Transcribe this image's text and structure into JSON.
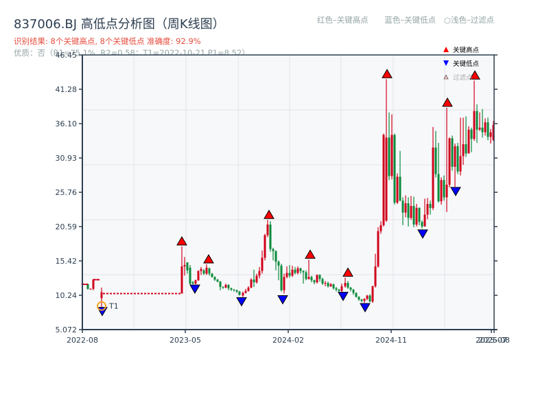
{
  "header": {
    "title": "837006.BJ 高低点分析图（周K线图）",
    "subtitle": "识别结果: 8个关键高点, 8个关键低点  准确度: 92.9%",
    "quality": "优质：否（R1=75.1%, R2=0.58；T1=2022-10-21 P1=8.52）",
    "legend_hint_red": "红色–关键高点",
    "legend_hint_blue": "蓝色–关键低点",
    "legend_hint_light": "○浅色–过滤点"
  },
  "colors": {
    "up": "#d0021b",
    "down": "#0a8a3a",
    "high_marker": "#ff0000",
    "low_marker": "#0000ff",
    "t1_ring": "#f5a623",
    "axis": "#2c3e50",
    "plot_bg": "#f7f8fa",
    "grid": "#e1e4e8"
  },
  "chart_data": {
    "type": "candlestick",
    "title": "837006.BJ 高低点分析图（周K线图）",
    "xlabel": "",
    "ylabel": "",
    "ylim": [
      5.072,
      46.45
    ],
    "y_ticks": [
      "46.45",
      "41.28",
      "36.10",
      "30.93",
      "25.76",
      "20.59",
      "15.42",
      "10.24",
      "5.072"
    ],
    "x_ticks": [
      "2022-08",
      "2023-05",
      "2024-02",
      "2024-11",
      "2025-07",
      "2025-08"
    ],
    "legend": [
      {
        "label": "关键高点",
        "marker": "triangle-up",
        "color": "#ff0000"
      },
      {
        "label": "关键低点",
        "marker": "triangle-down",
        "color": "#0000ff"
      },
      {
        "label": "过滤点",
        "marker": "triangle-up-light",
        "color": "#f4c2c2"
      }
    ],
    "annotations": [
      {
        "label": "T1",
        "date": "2022-10-21",
        "price": 8.52
      }
    ],
    "key_highs": [
      {
        "x": 265,
        "price": 17.6
      },
      {
        "x": 304,
        "price": 14.9
      },
      {
        "x": 392,
        "price": 21.6
      },
      {
        "x": 452,
        "price": 15.6
      },
      {
        "x": 507,
        "price": 12.9
      },
      {
        "x": 564,
        "price": 42.8
      },
      {
        "x": 652,
        "price": 38.5
      },
      {
        "x": 692,
        "price": 42.6
      }
    ],
    "key_lows": [
      {
        "x": 149,
        "price": 8.52
      },
      {
        "x": 284,
        "price": 11.9
      },
      {
        "x": 352,
        "price": 10.0
      },
      {
        "x": 412,
        "price": 10.3
      },
      {
        "x": 500,
        "price": 10.8
      },
      {
        "x": 532,
        "price": 9.1
      },
      {
        "x": 616,
        "price": 20.2
      },
      {
        "x": 664,
        "price": 26.6
      }
    ],
    "candles": [
      [
        120,
        11.9,
        12.0,
        12.0,
        11.8
      ],
      [
        124,
        11.9,
        11.9,
        12.0,
        11.8
      ],
      [
        128,
        11.9,
        11.2,
        12.0,
        11.1
      ],
      [
        132,
        11.2,
        11.2,
        11.3,
        11.1
      ],
      [
        136,
        11.2,
        12.6,
        12.7,
        11.0
      ],
      [
        140,
        12.6,
        12.6,
        12.7,
        12.5
      ],
      [
        144,
        12.6,
        12.6,
        12.7,
        12.5
      ],
      [
        148,
        9.8,
        10.7,
        11.4,
        8.5
      ],
      [
        152,
        10.5,
        10.5,
        10.6,
        10.4
      ],
      [
        160,
        10.5,
        10.5,
        10.6,
        10.4
      ],
      [
        170,
        10.5,
        10.5,
        10.6,
        10.4
      ],
      [
        180,
        10.5,
        10.5,
        10.6,
        10.4
      ],
      [
        190,
        10.5,
        10.5,
        10.6,
        10.4
      ],
      [
        200,
        10.5,
        10.5,
        10.6,
        10.4
      ],
      [
        210,
        10.5,
        10.5,
        10.6,
        10.4
      ],
      [
        220,
        10.5,
        10.5,
        10.6,
        10.4
      ],
      [
        230,
        10.5,
        10.5,
        10.6,
        10.4
      ],
      [
        240,
        10.5,
        10.5,
        10.6,
        10.4
      ],
      [
        250,
        10.5,
        10.5,
        10.6,
        10.4
      ],
      [
        260,
        10.5,
        10.5,
        10.6,
        10.4
      ],
      [
        265,
        10.5,
        14.6,
        17.6,
        10.5
      ],
      [
        269,
        14.6,
        14.8,
        16.0,
        13.2
      ],
      [
        273,
        15.2,
        14.0,
        15.2,
        13.5
      ],
      [
        277,
        14.4,
        12.0,
        14.8,
        11.8
      ],
      [
        281,
        12.2,
        12.0,
        12.4,
        11.9
      ],
      [
        285,
        12.0,
        12.5,
        12.6,
        11.9
      ],
      [
        289,
        12.5,
        13.9,
        14.0,
        12.4
      ],
      [
        293,
        13.9,
        14.2,
        14.5,
        13.3
      ],
      [
        297,
        14.0,
        13.5,
        14.2,
        13.3
      ],
      [
        301,
        13.5,
        14.4,
        14.9,
        13.3
      ],
      [
        305,
        14.3,
        13.5,
        14.4,
        13.2
      ],
      [
        309,
        13.5,
        13.0,
        13.6,
        12.9
      ],
      [
        313,
        13.0,
        12.6,
        13.1,
        12.4
      ],
      [
        317,
        12.6,
        12.3,
        12.7,
        12.2
      ],
      [
        321,
        12.3,
        11.5,
        12.4,
        11.0
      ],
      [
        325,
        11.5,
        11.4,
        11.6,
        11.2
      ],
      [
        329,
        11.4,
        11.8,
        12.0,
        11.3
      ],
      [
        333,
        11.8,
        11.3,
        11.9,
        11.0
      ],
      [
        337,
        11.3,
        11.1,
        11.4,
        10.9
      ],
      [
        341,
        11.1,
        11.0,
        11.2,
        10.8
      ],
      [
        345,
        11.0,
        10.8,
        11.1,
        10.6
      ],
      [
        349,
        10.8,
        10.3,
        10.9,
        10.2
      ],
      [
        354,
        10.2,
        10.6,
        10.8,
        10.0
      ],
      [
        358,
        10.6,
        10.9,
        11.2,
        10.5
      ],
      [
        362,
        10.9,
        11.4,
        11.6,
        10.8
      ],
      [
        366,
        11.4,
        12.6,
        12.8,
        11.3
      ],
      [
        370,
        12.6,
        12.2,
        14.1,
        11.5
      ],
      [
        374,
        12.2,
        13.2,
        13.5,
        12.0
      ],
      [
        378,
        13.2,
        13.9,
        14.5,
        12.8
      ],
      [
        382,
        13.9,
        15.9,
        17.0,
        13.5
      ],
      [
        386,
        15.9,
        19.3,
        19.5,
        15.5
      ],
      [
        390,
        19.3,
        20.9,
        21.6,
        19.0
      ],
      [
        394,
        20.9,
        17.2,
        21.4,
        16.8
      ],
      [
        398,
        17.2,
        16.9,
        17.4,
        15.5
      ],
      [
        402,
        16.9,
        15.3,
        17.0,
        14.0
      ],
      [
        406,
        15.3,
        14.7,
        15.5,
        12.5
      ],
      [
        410,
        14.7,
        11.0,
        15.0,
        10.8
      ],
      [
        414,
        11.0,
        13.0,
        13.5,
        10.5
      ],
      [
        418,
        13.0,
        13.6,
        14.6,
        12.8
      ],
      [
        422,
        13.6,
        13.2,
        14.8,
        12.9
      ],
      [
        426,
        13.2,
        14.1,
        14.7,
        13.0
      ],
      [
        430,
        14.1,
        13.6,
        14.5,
        13.4
      ],
      [
        434,
        13.6,
        14.3,
        14.6,
        13.4
      ],
      [
        438,
        14.3,
        13.9,
        14.4,
        13.5
      ],
      [
        442,
        13.9,
        13.7,
        14.0,
        12.0
      ],
      [
        446,
        13.7,
        12.7,
        14.0,
        12.5
      ],
      [
        450,
        12.7,
        13.0,
        15.6,
        12.6
      ],
      [
        454,
        13.0,
        12.5,
        13.2,
        12.2
      ],
      [
        458,
        12.5,
        12.2,
        12.6,
        11.9
      ],
      [
        462,
        12.2,
        13.3,
        13.4,
        12.0
      ],
      [
        466,
        13.3,
        12.7,
        13.4,
        12.3
      ],
      [
        470,
        12.7,
        12.0,
        12.9,
        11.8
      ],
      [
        474,
        12.0,
        12.1,
        12.4,
        11.6
      ],
      [
        478,
        12.1,
        11.6,
        12.3,
        11.4
      ],
      [
        482,
        11.6,
        11.9,
        12.1,
        11.5
      ],
      [
        486,
        11.9,
        11.3,
        12.0,
        11.1
      ],
      [
        490,
        11.3,
        11.1,
        11.5,
        10.8
      ],
      [
        494,
        11.1,
        10.9,
        11.2,
        10.6
      ],
      [
        498,
        10.9,
        11.6,
        12.0,
        10.7
      ],
      [
        503,
        11.6,
        12.1,
        12.9,
        11.4
      ],
      [
        507,
        12.1,
        11.4,
        12.4,
        11.2
      ],
      [
        511,
        11.4,
        11.1,
        11.5,
        10.8
      ],
      [
        515,
        11.1,
        10.6,
        11.2,
        10.3
      ],
      [
        519,
        10.6,
        10.0,
        10.7,
        9.9
      ],
      [
        523,
        10.0,
        9.6,
        10.1,
        9.4
      ],
      [
        527,
        9.6,
        9.4,
        9.7,
        9.2
      ],
      [
        531,
        9.4,
        9.7,
        9.8,
        9.1
      ],
      [
        535,
        9.7,
        10.2,
        10.3,
        9.5
      ],
      [
        539,
        10.2,
        9.3,
        10.4,
        9.2
      ],
      [
        543,
        9.3,
        11.6,
        11.7,
        9.1
      ],
      [
        547,
        11.6,
        14.6,
        16.5,
        11.4
      ],
      [
        551,
        14.6,
        19.9,
        20.5,
        14.4
      ],
      [
        555,
        19.9,
        20.8,
        21.4,
        19.5
      ],
      [
        559,
        20.8,
        34.4,
        34.6,
        20.6
      ],
      [
        563,
        21.5,
        34.0,
        42.8,
        21.3
      ],
      [
        567,
        34.0,
        28.2,
        37.8,
        27.6
      ],
      [
        571,
        28.2,
        34.4,
        37.5,
        27.7
      ],
      [
        575,
        34.4,
        24.2,
        34.6,
        23.9
      ],
      [
        579,
        24.2,
        28.1,
        28.6,
        24.0
      ],
      [
        583,
        28.1,
        24.5,
        32.0,
        24.4
      ],
      [
        587,
        24.5,
        22.7,
        25.0,
        20.8
      ],
      [
        591,
        22.7,
        24.1,
        25.3,
        22.0
      ],
      [
        595,
        24.1,
        21.9,
        25.0,
        20.6
      ],
      [
        599,
        21.9,
        23.7,
        25.2,
        21.6
      ],
      [
        603,
        23.7,
        20.9,
        25.1,
        20.5
      ],
      [
        607,
        20.9,
        23.4,
        24.0,
        20.6
      ],
      [
        611,
        23.4,
        21.3,
        23.5,
        20.8
      ],
      [
        615,
        21.3,
        20.6,
        21.5,
        20.3
      ],
      [
        619,
        20.6,
        22.4,
        24.8,
        22.0
      ],
      [
        623,
        22.4,
        24.0,
        24.9,
        21.7
      ],
      [
        627,
        24.0,
        23.4,
        24.5,
        22.4
      ],
      [
        631,
        23.4,
        32.5,
        35.6,
        23.1
      ],
      [
        635,
        32.5,
        28.5,
        35.0,
        28.0
      ],
      [
        639,
        28.5,
        24.4,
        33.2,
        24.2
      ],
      [
        643,
        24.4,
        27.6,
        28.0,
        23.9
      ],
      [
        647,
        27.6,
        25.0,
        28.3,
        24.5
      ],
      [
        651,
        25.0,
        26.9,
        38.5,
        22.8
      ],
      [
        655,
        26.9,
        33.9,
        34.0,
        26.5
      ],
      [
        659,
        33.9,
        29.6,
        34.3,
        29.0
      ],
      [
        663,
        29.6,
        32.7,
        33.1,
        26.6
      ],
      [
        667,
        32.7,
        28.9,
        33.2,
        28.5
      ],
      [
        671,
        28.9,
        31.2,
        37.0,
        28.3
      ],
      [
        675,
        31.2,
        33.0,
        37.0,
        29.9
      ],
      [
        679,
        33.0,
        31.6,
        37.2,
        31.1
      ],
      [
        683,
        31.6,
        35.2,
        35.7,
        31.8
      ],
      [
        687,
        35.2,
        33.8,
        35.5,
        31.8
      ],
      [
        691,
        33.8,
        38.0,
        42.6,
        33.5
      ],
      [
        695,
        38.0,
        35.2,
        39.0,
        33.2
      ],
      [
        699,
        35.2,
        35.5,
        37.8,
        35.0
      ],
      [
        703,
        35.5,
        34.8,
        38.3,
        34.0
      ],
      [
        707,
        34.8,
        36.3,
        36.9,
        34.3
      ],
      [
        711,
        36.3,
        34.1,
        37.0,
        33.6
      ],
      [
        715,
        34.1,
        34.8,
        35.3,
        33.1
      ],
      [
        719,
        33.6,
        35.9,
        36.5,
        33.5
      ]
    ]
  }
}
